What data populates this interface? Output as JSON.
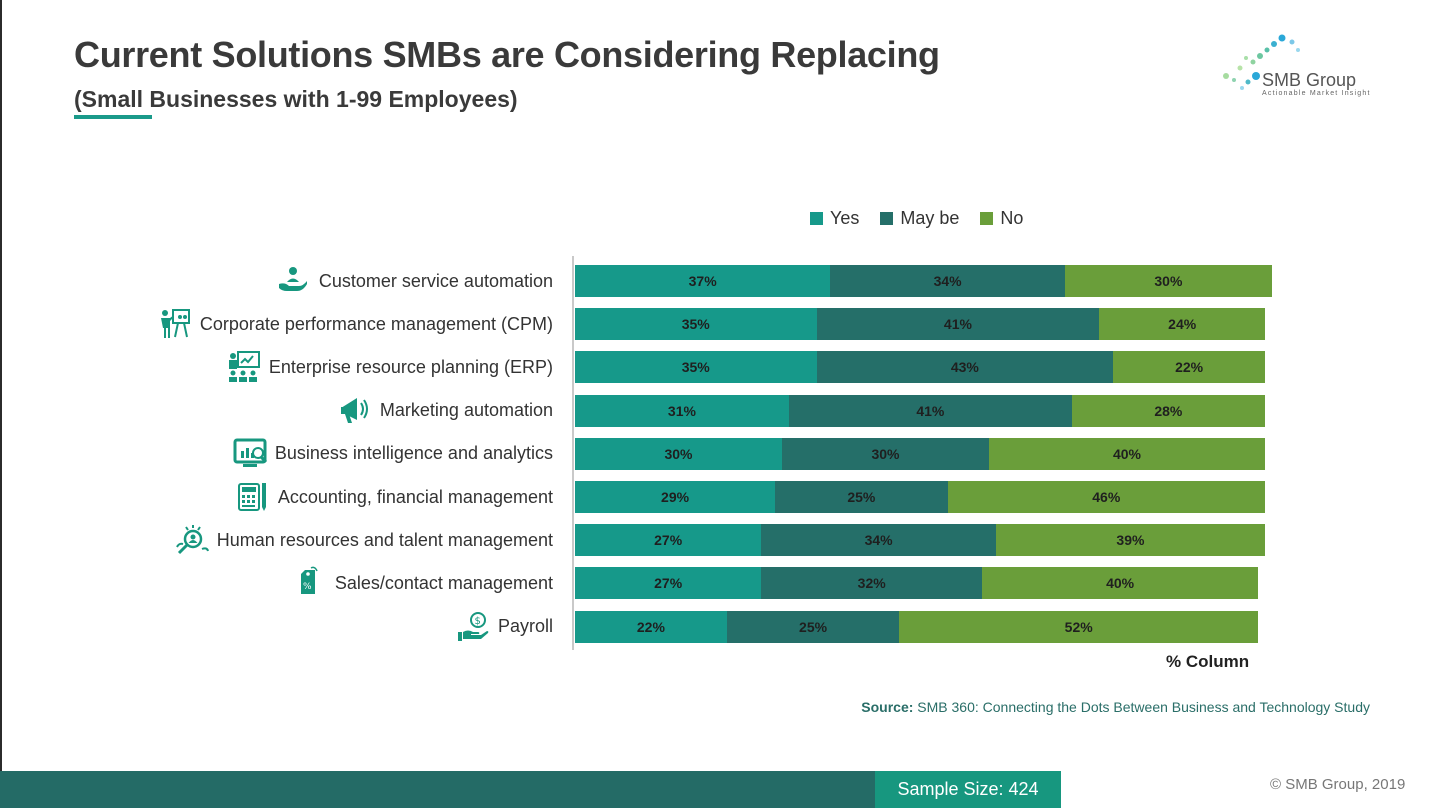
{
  "header": {
    "title": "Current Solutions SMBs are Considering Replacing",
    "subtitle": "(Small Businesses with 1-99 Employees)"
  },
  "logo": {
    "name": "SMB Group",
    "tagline": "Actionable Market Insight"
  },
  "chart_data": {
    "type": "bar",
    "orientation": "horizontal",
    "stacked": true,
    "categories": [
      "Customer service automation",
      "Corporate performance management (CPM)",
      "Enterprise resource planning (ERP)",
      "Marketing automation",
      "Business intelligence and analytics",
      "Accounting, financial management",
      "Human resources and talent management",
      "Sales/contact management",
      "Payroll"
    ],
    "icons": [
      "hand-user-icon",
      "presenter-board-icon",
      "classroom-board-icon",
      "megaphone-icon",
      "monitor-chart-icon",
      "calculator-icon",
      "talent-search-icon",
      "price-tag-icon",
      "hand-money-icon"
    ],
    "series": [
      {
        "name": "Yes",
        "color": "#16998a",
        "values": [
          37,
          35,
          35,
          31,
          30,
          29,
          27,
          27,
          22
        ],
        "labels": [
          "37%",
          "35%",
          "35%",
          "31%",
          "30%",
          "29%",
          "27%",
          "27%",
          "22%"
        ]
      },
      {
        "name": "May be",
        "color": "#256f69",
        "values": [
          34,
          41,
          43,
          41,
          30,
          25,
          34,
          32,
          25
        ],
        "labels": [
          "34%",
          "41%",
          "43%",
          "41%",
          "30%",
          "25%",
          "34%",
          "32%",
          "25%"
        ]
      },
      {
        "name": "No",
        "color": "#6a9e3a",
        "values": [
          30,
          24,
          22,
          28,
          40,
          46,
          39,
          40,
          52
        ],
        "labels": [
          "30%",
          "24%",
          "22%",
          "28%",
          "40%",
          "46%",
          "39%",
          "40%",
          "52%"
        ]
      }
    ],
    "axis_note": "% Column",
    "legend_position": "top",
    "grid": false
  },
  "source": {
    "label": "Source:",
    "text": "SMB 360: Connecting the Dots Between Business and Technology Study"
  },
  "footer": {
    "sample_size": "Sample Size: 424",
    "copyright": "© SMB Group, 2019"
  }
}
